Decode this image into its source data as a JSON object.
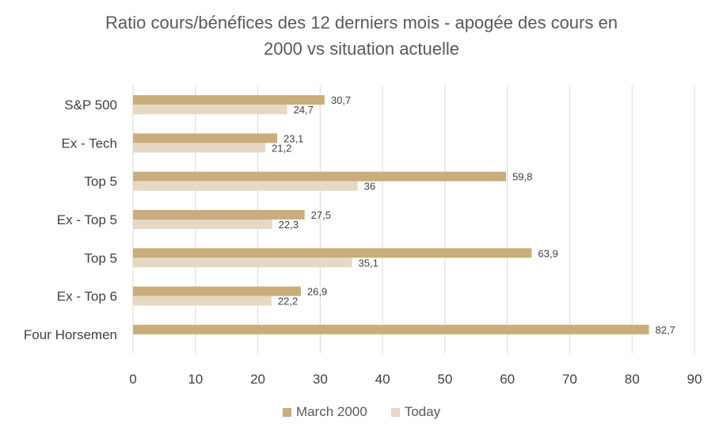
{
  "chart_data": {
    "type": "bar",
    "orientation": "horizontal",
    "title_line1": "Ratio cours/bénéfices des 12 derniers mois - apogée des cours en",
    "title_line2": "2000 vs situation actuelle",
    "categories": [
      "S&P 500",
      "Ex - Tech",
      "Top 5",
      "Ex - Top 5",
      "Top 5",
      "Ex - Top 6",
      "Four Horsemen"
    ],
    "series": [
      {
        "name": "March 2000",
        "color": "#c9ad7a",
        "values": [
          30.7,
          23.1,
          59.8,
          27.5,
          63.9,
          26.9,
          82.7
        ],
        "labels": [
          "30,7",
          "23,1",
          "59,8",
          "27,5",
          "63,9",
          "26,9",
          "82,7"
        ]
      },
      {
        "name": "Today",
        "color": "#e6d8c3",
        "values": [
          24.7,
          21.2,
          36,
          22.3,
          35.1,
          22.2,
          null
        ],
        "labels": [
          "24,7",
          "21,2",
          "36",
          "22,3",
          "35,1",
          "22,2",
          ""
        ]
      }
    ],
    "xlim": [
      0,
      90
    ],
    "xticks": [
      0,
      10,
      20,
      30,
      40,
      50,
      60,
      70,
      80,
      90
    ],
    "grid": true,
    "legend_position": "bottom"
  }
}
